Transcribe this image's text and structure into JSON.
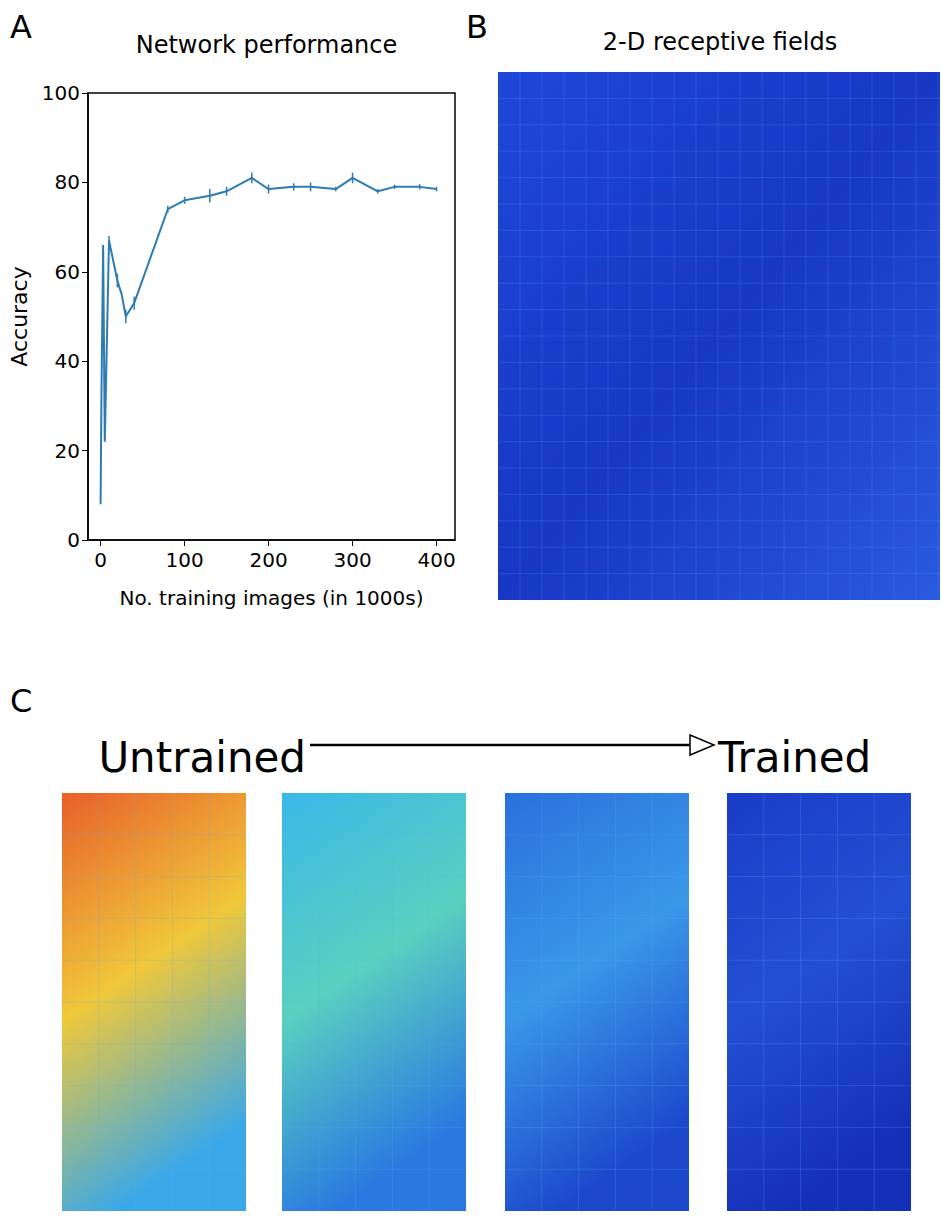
{
  "chart_data": {
    "type": "line",
    "panel_label": "A",
    "title": "Network performance",
    "x_label": "No. training images (in 1000s)",
    "y_label": "Accuracy",
    "x": [
      0,
      1,
      3,
      5,
      10,
      20,
      25,
      30,
      40,
      80,
      100,
      130,
      150,
      180,
      200,
      230,
      250,
      280,
      300,
      330,
      350,
      380,
      400
    ],
    "values": [
      8,
      32,
      66,
      22,
      67,
      58,
      55,
      50,
      53,
      74,
      76,
      77,
      78,
      81,
      78.5,
      79,
      79,
      78.5,
      81,
      78,
      79,
      79,
      78.5
    ],
    "errors": [
      0,
      0,
      0,
      0,
      1,
      1.5,
      0,
      1.5,
      1.5,
      0.8,
      0.8,
      1.5,
      1,
      1.2,
      1,
      0.8,
      1,
      0.5,
      1.2,
      0.5,
      0.5,
      0.6,
      0.5
    ],
    "color": "#2e7bb4",
    "xlim": [
      -15,
      422
    ],
    "xticks": [
      0,
      100,
      200,
      300,
      400
    ],
    "ylim": [
      0,
      100
    ],
    "yticks": [
      0,
      20,
      40,
      60,
      80,
      100
    ],
    "grid": false
  },
  "panels": [
    {
      "label": "B",
      "title": "2-D receptive fields"
    },
    {
      "label": "C",
      "start": "Untrained",
      "end": "Trained"
    }
  ]
}
